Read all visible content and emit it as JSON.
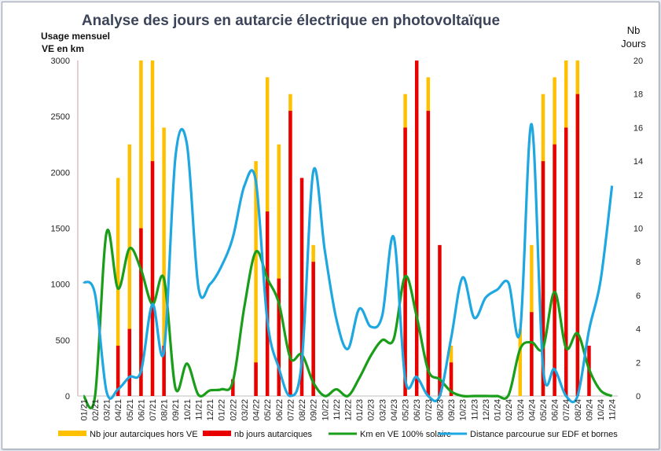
{
  "chart_data": {
    "type": "bar",
    "title": "Analyse des jours en autarcie électrique en photovoltaïque",
    "y_left_label_lines": [
      "Usage mensuel",
      "VE en km"
    ],
    "y_right_label_lines": [
      "Nb",
      "Jours"
    ],
    "y_left_range": [
      0,
      3000
    ],
    "y_left_ticks": [
      0,
      500,
      1000,
      1500,
      2000,
      2500,
      3000
    ],
    "y_right_range": [
      0,
      20
    ],
    "y_right_ticks": [
      0,
      2,
      4,
      6,
      8,
      10,
      12,
      14,
      16,
      18,
      20
    ],
    "grid": false,
    "legend_position": "bottom",
    "categories": [
      "01/21",
      "02/21",
      "03/21",
      "04/21",
      "05/21",
      "06/21",
      "07/21",
      "08/21",
      "09/21",
      "10/21",
      "11/21",
      "12/21",
      "01/22",
      "02/22",
      "03/22",
      "04/22",
      "05/22",
      "06/22",
      "07/22",
      "08/22",
      "09/22",
      "10/22",
      "11/22",
      "12/22",
      "01/23",
      "02/23",
      "03/23",
      "04/23",
      "05/23",
      "06/23",
      "07/23",
      "08/23",
      "09/23",
      "10/23",
      "11/23",
      "12/23",
      "01/24",
      "02/24",
      "03/24",
      "04/24",
      "05/24",
      "06/24",
      "07/24",
      "08/24",
      "09/24",
      "10/24",
      "11/24"
    ],
    "series": [
      {
        "name": "Nb jour autarciques hors VE",
        "kind": "bar",
        "axis": "right",
        "color": "#ffc000",
        "values": [
          0,
          0,
          0,
          13,
          15,
          20,
          20,
          16,
          0,
          0,
          0,
          0,
          0,
          0,
          0,
          14,
          19,
          15,
          18,
          0,
          9,
          0,
          0,
          0,
          0,
          0,
          0,
          0,
          18,
          0,
          19,
          0,
          3,
          0,
          0,
          0,
          0,
          0,
          4,
          9,
          18,
          19,
          20,
          20,
          0,
          0,
          0
        ]
      },
      {
        "name": "nb jours autarciques",
        "kind": "bar",
        "axis": "right",
        "color": "#e80000",
        "values": [
          0,
          0,
          0,
          3,
          4,
          10,
          14,
          3,
          0,
          0,
          0,
          0,
          0,
          1,
          0,
          2,
          11,
          7,
          17,
          13,
          8,
          0,
          0,
          0,
          0,
          0,
          0,
          0,
          16,
          20,
          17,
          9,
          2,
          0,
          0,
          0,
          0,
          0,
          0,
          5,
          14,
          15,
          16,
          18,
          3,
          0,
          0
        ]
      },
      {
        "name": "Km en VE 100% solaire",
        "kind": "line",
        "axis": "left",
        "color": "#1a9e1a",
        "values": [
          0,
          0,
          1460,
          960,
          1320,
          1130,
          820,
          1050,
          70,
          290,
          10,
          50,
          60,
          130,
          800,
          1290,
          1050,
          830,
          340,
          370,
          120,
          0,
          60,
          0,
          160,
          360,
          500,
          510,
          1070,
          710,
          230,
          150,
          40,
          0,
          0,
          0,
          0,
          10,
          420,
          480,
          430,
          930,
          430,
          560,
          240,
          50,
          0
        ]
      },
      {
        "name": "Distance parcourue sur EDF et bornes",
        "kind": "line",
        "axis": "left",
        "color": "#1ea7e1",
        "values": [
          1020,
          910,
          40,
          60,
          170,
          220,
          820,
          400,
          2140,
          2250,
          970,
          1000,
          1160,
          1420,
          1880,
          1920,
          670,
          250,
          0,
          310,
          2010,
          1300,
          690,
          420,
          780,
          620,
          720,
          1420,
          150,
          170,
          0,
          0,
          520,
          1060,
          700,
          880,
          950,
          1010,
          580,
          2430,
          250,
          240,
          0,
          0,
          590,
          1030,
          1880
        ]
      }
    ]
  }
}
